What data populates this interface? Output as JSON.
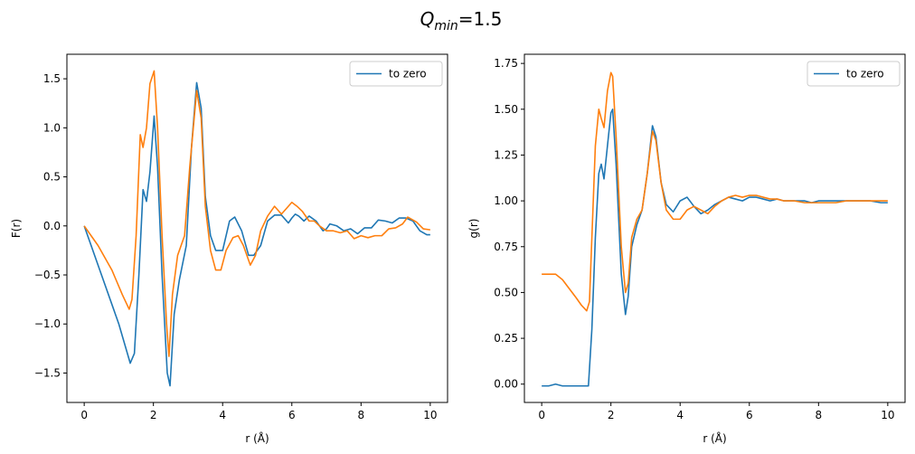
{
  "figure": {
    "title_main": "Q",
    "title_sub": "min",
    "title_rest": "=1.5"
  },
  "chart_data": [
    {
      "type": "line",
      "xlabel": "r (Å)",
      "ylabel": "F(r)",
      "xlim": [
        -0.5,
        10.5
      ],
      "ylim": [
        -1.8,
        1.75
      ],
      "xticks": [
        0,
        2,
        4,
        6,
        8,
        10
      ],
      "xtick_labels": [
        "0",
        "2",
        "4",
        "6",
        "8",
        "10"
      ],
      "yticks": [
        -1.5,
        -1.0,
        -0.5,
        0.0,
        0.5,
        1.0,
        1.5
      ],
      "ytick_labels": [
        "−1.5",
        "−1.0",
        "−0.5",
        "0.0",
        "0.5",
        "1.0",
        "1.5"
      ],
      "grid": false,
      "legend": {
        "placement": "upper-right",
        "entries": [
          "to zero"
        ]
      },
      "series": [
        {
          "name": "to zero",
          "color": "#1f77b4",
          "x": [
            0,
            0.5,
            1.0,
            1.33,
            1.45,
            1.58,
            1.7,
            1.8,
            1.9,
            2.02,
            2.12,
            2.25,
            2.4,
            2.48,
            2.6,
            2.75,
            2.95,
            3.1,
            3.25,
            3.38,
            3.5,
            3.65,
            3.8,
            4.0,
            4.2,
            4.35,
            4.55,
            4.75,
            4.9,
            5.1,
            5.3,
            5.5,
            5.7,
            5.9,
            6.0,
            6.1,
            6.2,
            6.35,
            6.5,
            6.7,
            6.9,
            7.0,
            7.1,
            7.3,
            7.5,
            7.7,
            7.9,
            8.1,
            8.3,
            8.5,
            8.7,
            8.9,
            9.1,
            9.3,
            9.5,
            9.7,
            9.9,
            10.0
          ],
          "y": [
            0.0,
            -0.5,
            -1.0,
            -1.4,
            -1.3,
            -0.5,
            0.37,
            0.25,
            0.55,
            1.12,
            0.6,
            -0.5,
            -1.5,
            -1.63,
            -0.9,
            -0.55,
            -0.2,
            0.8,
            1.46,
            1.2,
            0.3,
            -0.1,
            -0.25,
            -0.25,
            0.05,
            0.09,
            -0.05,
            -0.3,
            -0.3,
            -0.2,
            0.05,
            0.11,
            0.11,
            0.03,
            0.08,
            0.12,
            0.1,
            0.05,
            0.1,
            0.05,
            -0.05,
            -0.03,
            0.02,
            0.0,
            -0.05,
            -0.03,
            -0.08,
            -0.02,
            -0.02,
            0.06,
            0.05,
            0.03,
            0.08,
            0.08,
            0.05,
            -0.05,
            -0.09,
            -0.09
          ]
        },
        {
          "name": "",
          "color": "#ff7f0e",
          "x": [
            0,
            0.4,
            0.8,
            1.1,
            1.3,
            1.38,
            1.5,
            1.62,
            1.7,
            1.8,
            1.9,
            2.02,
            2.12,
            2.25,
            2.38,
            2.45,
            2.55,
            2.7,
            2.9,
            3.05,
            3.25,
            3.38,
            3.5,
            3.65,
            3.8,
            3.95,
            4.1,
            4.3,
            4.45,
            4.6,
            4.8,
            4.95,
            5.1,
            5.3,
            5.5,
            5.7,
            5.85,
            6.0,
            6.15,
            6.3,
            6.5,
            6.65,
            6.8,
            7.0,
            7.2,
            7.4,
            7.6,
            7.8,
            8.0,
            8.2,
            8.4,
            8.6,
            8.8,
            9.0,
            9.2,
            9.35,
            9.6,
            9.8,
            10.0
          ],
          "y": [
            0.0,
            -0.2,
            -0.45,
            -0.7,
            -0.85,
            -0.75,
            -0.1,
            0.93,
            0.8,
            1.0,
            1.45,
            1.58,
            1.0,
            -0.1,
            -1.0,
            -1.33,
            -0.7,
            -0.3,
            -0.1,
            0.6,
            1.38,
            1.1,
            0.2,
            -0.25,
            -0.45,
            -0.45,
            -0.25,
            -0.12,
            -0.1,
            -0.2,
            -0.4,
            -0.3,
            -0.05,
            0.1,
            0.2,
            0.12,
            0.18,
            0.24,
            0.2,
            0.15,
            0.05,
            0.05,
            0.0,
            -0.05,
            -0.05,
            -0.07,
            -0.05,
            -0.13,
            -0.1,
            -0.12,
            -0.1,
            -0.1,
            -0.03,
            -0.02,
            0.02,
            0.09,
            0.04,
            -0.03,
            -0.04
          ]
        }
      ]
    },
    {
      "type": "line",
      "xlabel": "r (Å)",
      "ylabel": "g(r)",
      "xlim": [
        -0.5,
        10.5
      ],
      "ylim": [
        -0.1,
        1.8
      ],
      "xticks": [
        0,
        2,
        4,
        6,
        8,
        10
      ],
      "xtick_labels": [
        "0",
        "2",
        "4",
        "6",
        "8",
        "10"
      ],
      "yticks": [
        0.0,
        0.25,
        0.5,
        0.75,
        1.0,
        1.25,
        1.5,
        1.75
      ],
      "ytick_labels": [
        "0.00",
        "0.25",
        "0.50",
        "0.75",
        "1.00",
        "1.25",
        "1.50",
        "1.75"
      ],
      "grid": false,
      "legend": {
        "placement": "upper-right",
        "entries": [
          "to zero"
        ]
      },
      "series": [
        {
          "name": "to zero",
          "color": "#1f77b4",
          "x": [
            0,
            0.2,
            0.4,
            0.6,
            0.8,
            1.0,
            1.2,
            1.35,
            1.45,
            1.55,
            1.65,
            1.72,
            1.8,
            1.9,
            2.0,
            2.05,
            2.15,
            2.3,
            2.42,
            2.5,
            2.6,
            2.75,
            2.9,
            3.05,
            3.2,
            3.3,
            3.45,
            3.6,
            3.8,
            4.0,
            4.2,
            4.4,
            4.6,
            4.8,
            5.0,
            5.2,
            5.4,
            5.6,
            5.8,
            6.0,
            6.2,
            6.4,
            6.6,
            6.8,
            7.0,
            7.2,
            7.4,
            7.6,
            7.8,
            8.0,
            8.3,
            8.6,
            8.9,
            9.2,
            9.5,
            9.8,
            10.0
          ],
          "y": [
            -0.01,
            -0.01,
            0.0,
            -0.01,
            -0.01,
            -0.01,
            -0.01,
            -0.01,
            0.3,
            0.8,
            1.15,
            1.2,
            1.12,
            1.3,
            1.48,
            1.5,
            1.2,
            0.6,
            0.38,
            0.48,
            0.75,
            0.87,
            0.95,
            1.15,
            1.41,
            1.35,
            1.1,
            0.98,
            0.94,
            1.0,
            1.02,
            0.97,
            0.93,
            0.95,
            0.98,
            1.0,
            1.02,
            1.01,
            1.0,
            1.02,
            1.02,
            1.01,
            1.0,
            1.01,
            1.0,
            1.0,
            1.0,
            1.0,
            0.99,
            1.0,
            1.0,
            1.0,
            1.0,
            1.0,
            1.0,
            0.99,
            0.99
          ]
        },
        {
          "name": "",
          "color": "#ff7f0e",
          "x": [
            0,
            0.2,
            0.4,
            0.6,
            0.8,
            1.0,
            1.15,
            1.3,
            1.38,
            1.45,
            1.55,
            1.65,
            1.72,
            1.8,
            1.9,
            2.0,
            2.05,
            2.15,
            2.3,
            2.42,
            2.5,
            2.6,
            2.75,
            2.9,
            3.05,
            3.2,
            3.3,
            3.45,
            3.6,
            3.8,
            4.0,
            4.2,
            4.4,
            4.6,
            4.8,
            5.0,
            5.2,
            5.4,
            5.6,
            5.8,
            6.0,
            6.2,
            6.4,
            6.6,
            6.8,
            7.0,
            7.3,
            7.6,
            7.9,
            8.2,
            8.5,
            8.8,
            9.1,
            9.4,
            9.7,
            10.0
          ],
          "y": [
            0.6,
            0.6,
            0.6,
            0.57,
            0.52,
            0.47,
            0.43,
            0.4,
            0.45,
            0.8,
            1.3,
            1.5,
            1.45,
            1.4,
            1.6,
            1.7,
            1.68,
            1.35,
            0.75,
            0.5,
            0.55,
            0.8,
            0.9,
            0.95,
            1.15,
            1.38,
            1.33,
            1.1,
            0.95,
            0.9,
            0.9,
            0.95,
            0.97,
            0.95,
            0.93,
            0.97,
            1.0,
            1.02,
            1.03,
            1.02,
            1.03,
            1.03,
            1.02,
            1.01,
            1.01,
            1.0,
            1.0,
            0.99,
            0.99,
            0.99,
            0.99,
            1.0,
            1.0,
            1.0,
            1.0,
            1.0
          ]
        }
      ]
    }
  ]
}
